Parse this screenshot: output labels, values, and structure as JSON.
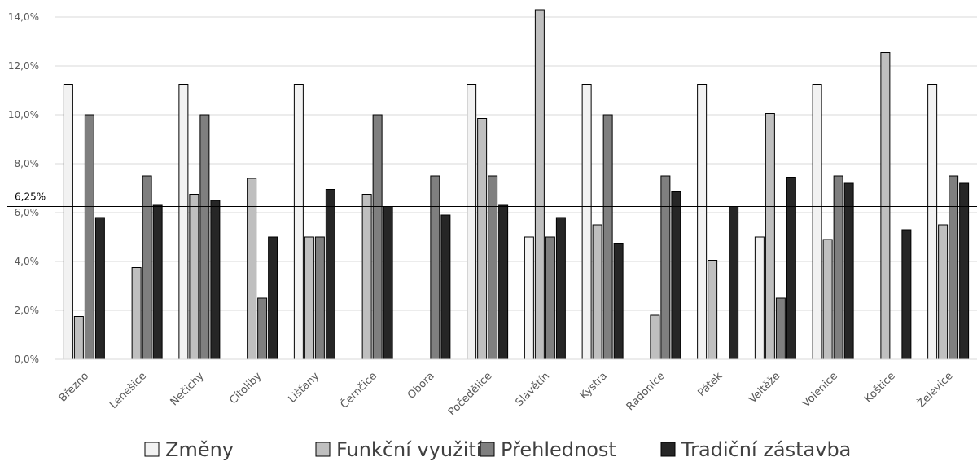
{
  "chart_data": {
    "type": "bar",
    "title": "",
    "xlabel": "",
    "ylabel": "",
    "ylim": [
      0,
      14
    ],
    "y_ticks": [
      "0,0%",
      "2,0%",
      "4,0%",
      "6,0%",
      "8,0%",
      "10,0%",
      "12,0%",
      "14,0%"
    ],
    "grid": true,
    "legend_position": "bottom",
    "reference_line": {
      "value": 6.25,
      "label": "6,25%"
    },
    "categories": [
      "Březno",
      "Lenešice",
      "Nečichy",
      "Cítoliby",
      "Lišťany",
      "Černčice",
      "Obora",
      "Počedělice",
      "Slavětín",
      "Kystra",
      "Radonice",
      "Pátek",
      "Veltěže",
      "Volenice",
      "Koštice",
      "Želevice"
    ],
    "series": [
      {
        "name": "Změny",
        "color": "#f2f2f2",
        "values": [
          11.25,
          0,
          11.25,
          0,
          11.25,
          0,
          0,
          11.25,
          5.0,
          11.25,
          0,
          11.25,
          5.0,
          11.25,
          0,
          11.25
        ]
      },
      {
        "name": "Funkční využití",
        "color": "#bfbfbf",
        "values": [
          1.75,
          3.75,
          6.75,
          7.4,
          5.0,
          6.75,
          0,
          9.85,
          14.3,
          5.5,
          1.8,
          4.05,
          10.05,
          4.9,
          12.55,
          5.5
        ]
      },
      {
        "name": "Přehlednost",
        "color": "#7f7f7f",
        "values": [
          10.0,
          7.5,
          10.0,
          2.5,
          5.0,
          10.0,
          7.5,
          7.5,
          5.0,
          10.0,
          7.5,
          0,
          2.5,
          7.5,
          0,
          7.5
        ]
      },
      {
        "name": "Tradiční zástavba",
        "color": "#262626",
        "values": [
          5.8,
          6.3,
          6.5,
          5.0,
          6.95,
          6.25,
          5.9,
          6.3,
          5.8,
          4.75,
          6.85,
          6.25,
          7.45,
          7.2,
          5.3,
          7.2
        ]
      }
    ]
  }
}
